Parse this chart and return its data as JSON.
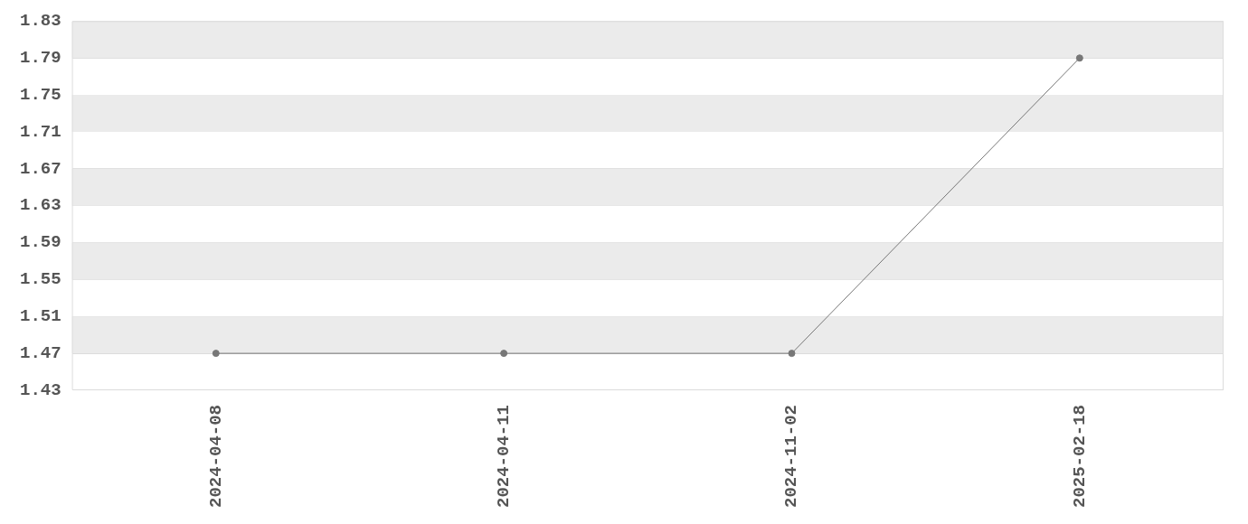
{
  "chart_data": {
    "type": "line",
    "categories": [
      "2024-04-08",
      "2024-04-11",
      "2024-11-02",
      "2025-02-18"
    ],
    "series": [
      {
        "color": "#777777",
        "values": [
          1.47,
          1.47,
          1.47,
          1.79
        ]
      }
    ],
    "ylim": [
      1.43,
      1.83
    ],
    "yticks": [
      1.43,
      1.47,
      1.51,
      1.55,
      1.59,
      1.63,
      1.67,
      1.71,
      1.75,
      1.79,
      1.83
    ],
    "grid": true,
    "legend": false,
    "marker": "circle",
    "line_style": "solid"
  }
}
